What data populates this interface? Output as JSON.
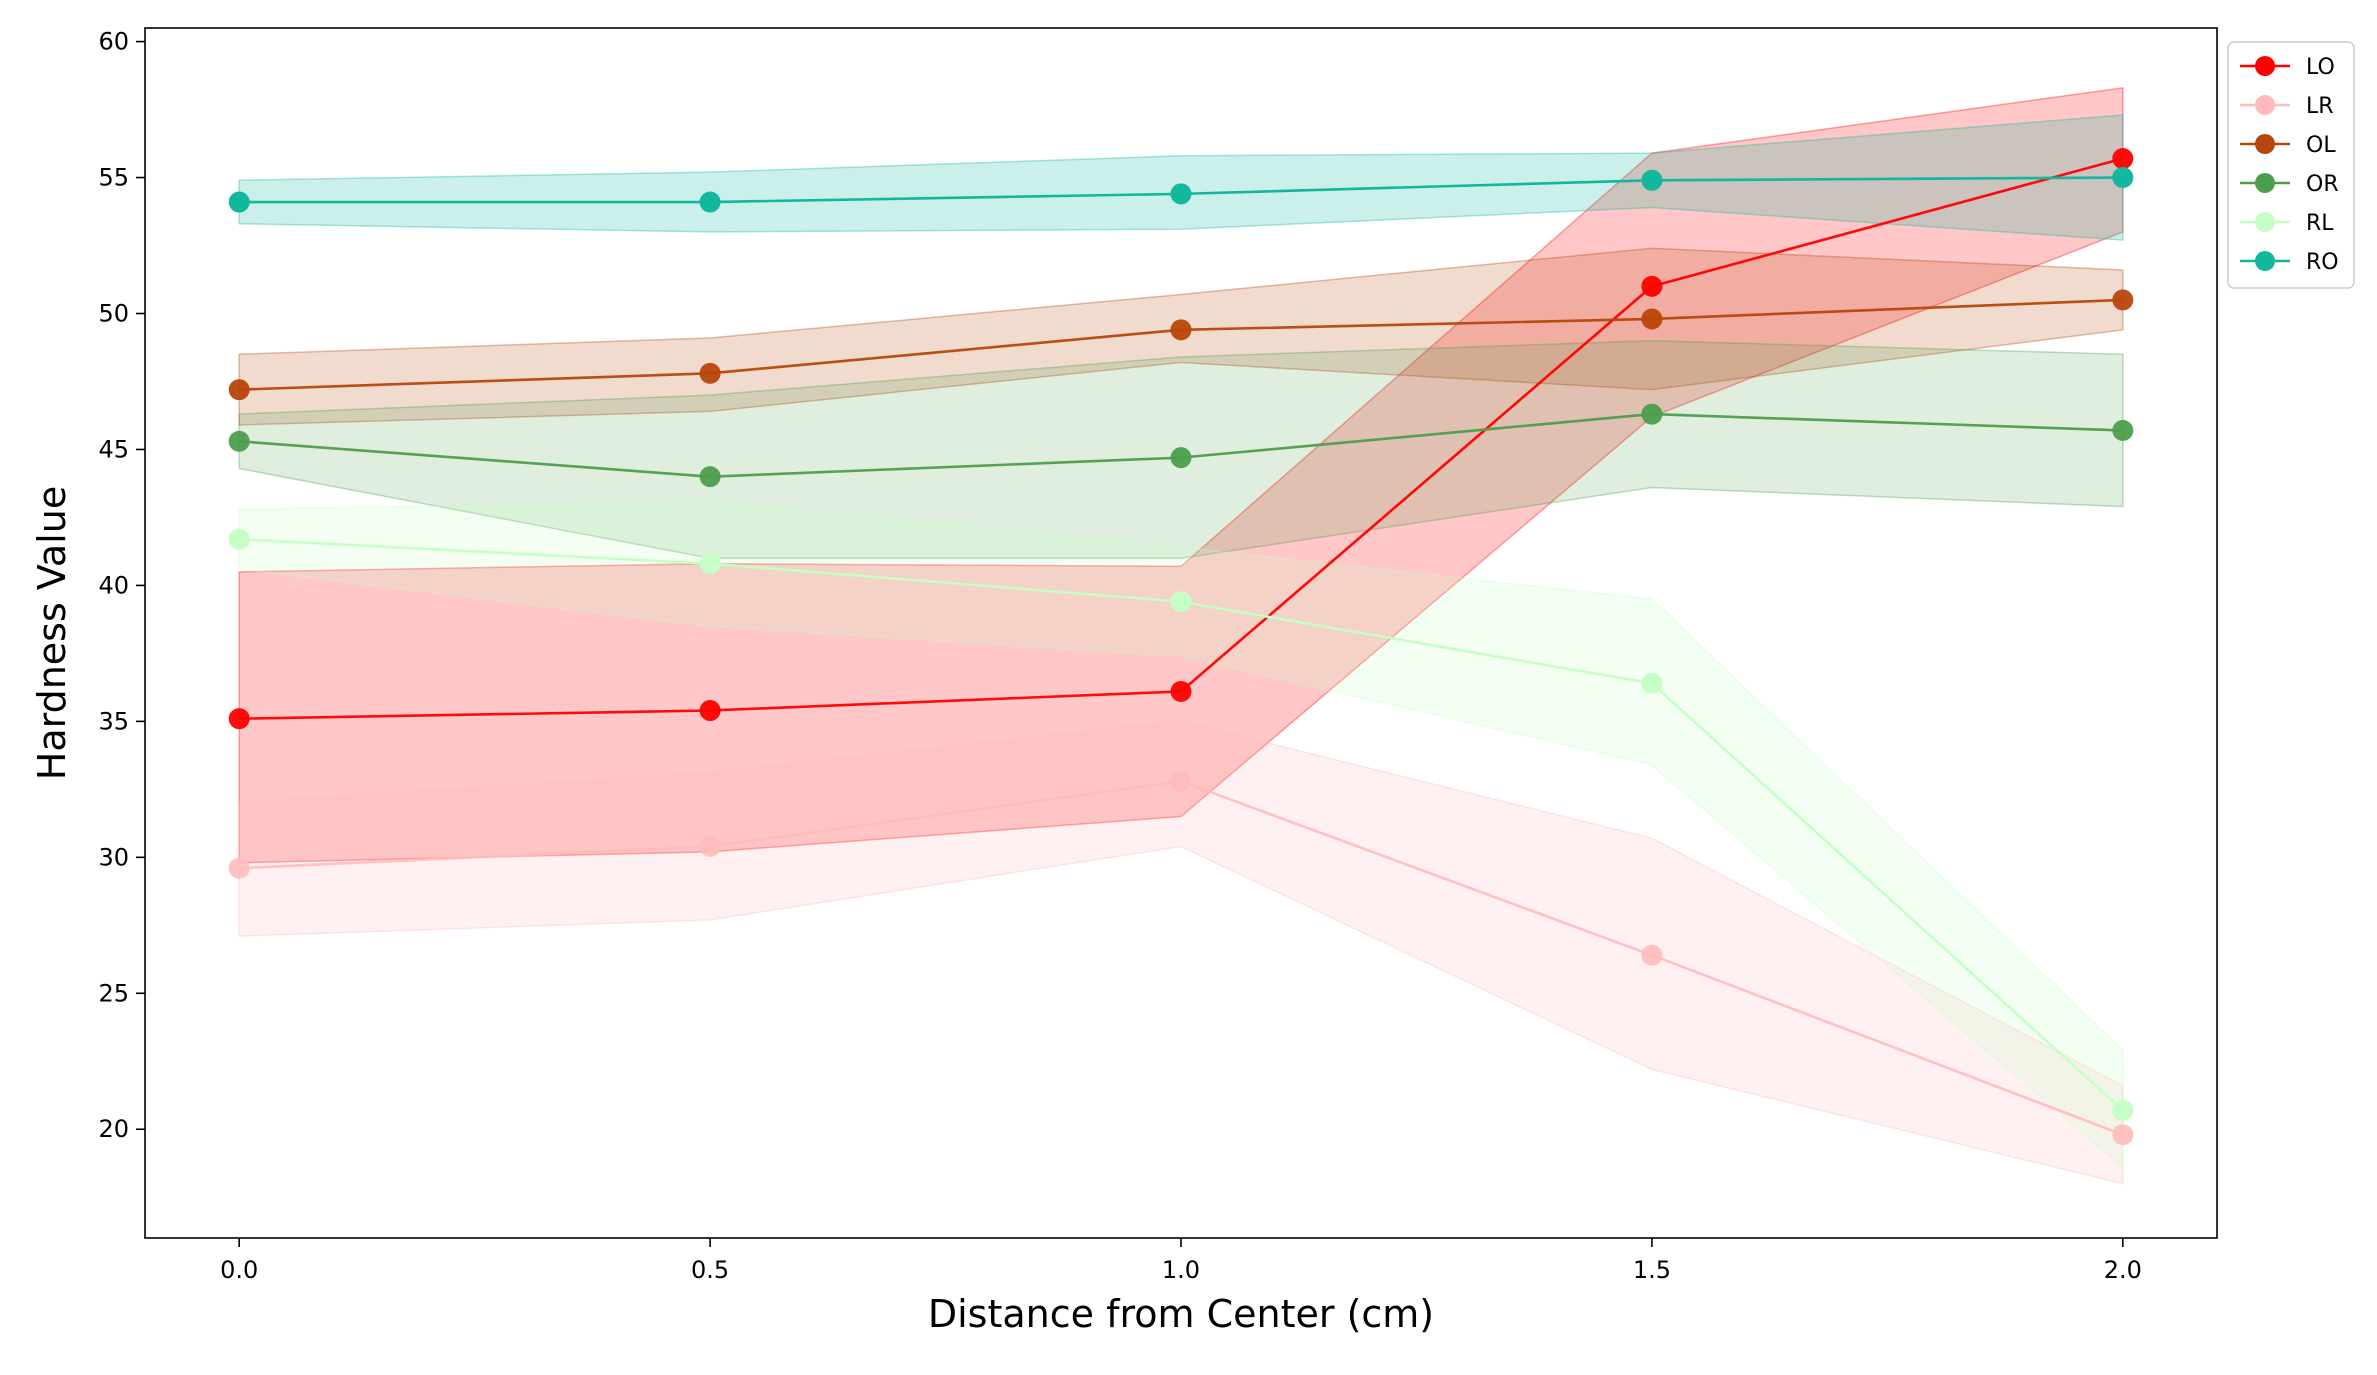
{
  "chart_data": {
    "type": "line",
    "title": "",
    "xlabel": "Distance from Center (cm)",
    "ylabel": "Hardness Value",
    "x": [
      0.0,
      0.5,
      1.0,
      1.5,
      2.0
    ],
    "x_tick_labels": [
      "0.0",
      "0.5",
      "1.0",
      "1.5",
      "2.0"
    ],
    "y_ticks": [
      20,
      25,
      30,
      35,
      40,
      45,
      50,
      55,
      60
    ],
    "xlim": [
      -0.1,
      2.1
    ],
    "ylim": [
      16,
      60.5
    ],
    "grid": false,
    "legend_position": "outside-top-right",
    "series": [
      {
        "name": "LO",
        "color": "#ff0000",
        "values": [
          35.1,
          35.4,
          36.1,
          51.0,
          55.7
        ],
        "lower": [
          29.8,
          30.2,
          31.5,
          46.2,
          53.0
        ],
        "upper": [
          40.5,
          40.8,
          40.7,
          55.9,
          58.3
        ],
        "band_opacity": 0.22,
        "line_opacity": 0.95
      },
      {
        "name": "LR",
        "color": "#ffbbbb",
        "values": [
          29.6,
          30.4,
          32.8,
          26.4,
          19.8
        ],
        "lower": [
          27.1,
          27.7,
          30.4,
          22.2,
          18.0
        ],
        "upper": [
          32.0,
          33.1,
          35.0,
          30.7,
          21.6
        ],
        "band_opacity": 0.2,
        "line_opacity": 0.9
      },
      {
        "name": "OL",
        "color": "#b8460b",
        "values": [
          47.2,
          47.8,
          49.4,
          49.8,
          50.5
        ],
        "lower": [
          45.9,
          46.4,
          48.2,
          47.2,
          49.4
        ],
        "upper": [
          48.5,
          49.1,
          50.7,
          52.4,
          51.6
        ],
        "band_opacity": 0.2,
        "line_opacity": 0.95
      },
      {
        "name": "OR",
        "color": "#4c9e4c",
        "values": [
          45.3,
          44.0,
          44.7,
          46.3,
          45.7
        ],
        "lower": [
          44.3,
          41.0,
          41.0,
          43.6,
          42.9
        ],
        "upper": [
          46.3,
          47.0,
          48.4,
          49.0,
          48.5
        ],
        "band_opacity": 0.18,
        "line_opacity": 0.95
      },
      {
        "name": "RL",
        "color": "#c6ffc6",
        "values": [
          41.7,
          40.8,
          39.4,
          36.4,
          20.7
        ],
        "lower": [
          40.6,
          38.5,
          37.4,
          33.4,
          18.6
        ],
        "upper": [
          42.8,
          43.1,
          41.4,
          39.5,
          22.9
        ],
        "band_opacity": 0.2,
        "line_opacity": 1.0
      },
      {
        "name": "RO",
        "color": "#12b79e",
        "values": [
          54.1,
          54.1,
          54.4,
          54.9,
          55.0
        ],
        "lower": [
          53.3,
          53.0,
          53.1,
          53.9,
          52.7
        ],
        "upper": [
          54.9,
          55.2,
          55.8,
          55.9,
          57.3
        ],
        "band_opacity": 0.22,
        "line_opacity": 1.0
      }
    ]
  }
}
